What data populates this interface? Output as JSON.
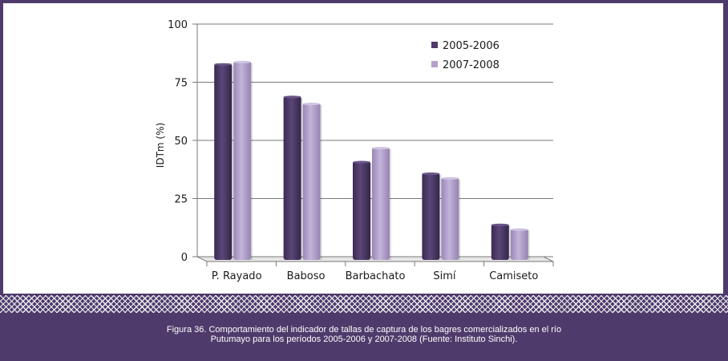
{
  "chart_data": {
    "type": "bar",
    "categories": [
      "P. Rayado",
      "Baboso",
      "Barbachato",
      "Simí",
      "Camiseto"
    ],
    "series": [
      {
        "name": "2005-2006",
        "values": [
          83,
          69,
          41,
          36,
          14
        ],
        "color": "#4e3a68"
      },
      {
        "name": "2007-2008",
        "values": [
          84,
          66,
          47,
          34,
          12
        ],
        "color": "#b3a2cc"
      }
    ],
    "ylabel": "IDTm (%)",
    "xlabel": "",
    "ylim": [
      0,
      100
    ],
    "yticks": [
      0,
      25,
      50,
      75,
      100
    ],
    "grid": true,
    "legend": "top-right"
  },
  "caption": {
    "line1": "Figura 36. Comportamiento del indicador de tallas de captura de los bagres comercializados en el río",
    "line2": "Putumayo para los períodos 2005-2006 y 2007-2008 (Fuente: Instituto Sinchi)."
  }
}
